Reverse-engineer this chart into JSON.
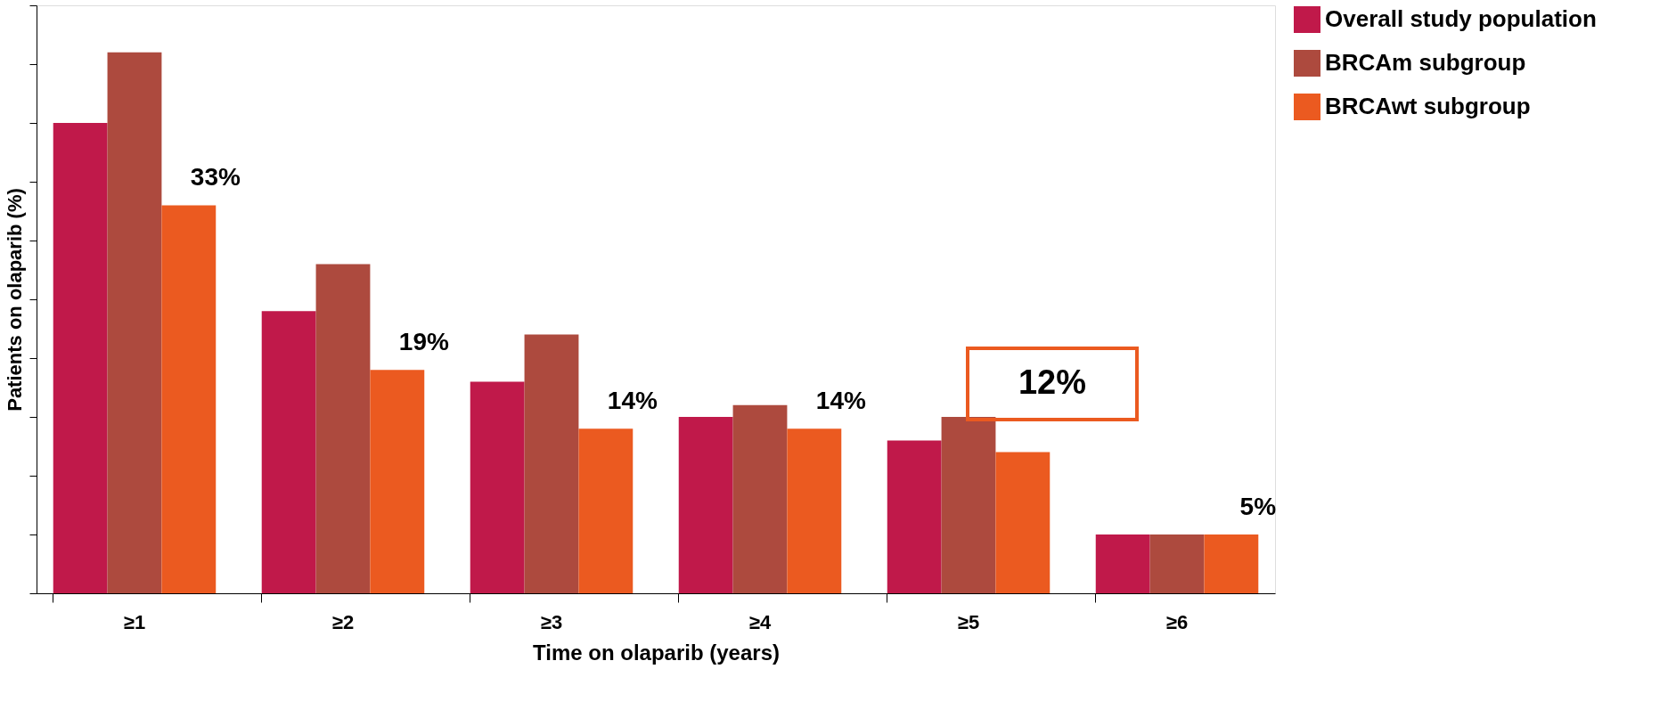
{
  "chart_data": {
    "type": "bar",
    "xlabel": "Time on olaparib (years)",
    "ylabel": "Patients on olaparib (%)",
    "categories": [
      "≥1",
      "≥2",
      "≥3",
      "≥4",
      "≥5",
      "≥6"
    ],
    "series": [
      {
        "name": "Overall study population",
        "color": "#c0194a",
        "values": [
          40,
          24,
          18,
          15,
          13,
          5
        ]
      },
      {
        "name": "BRCAm subgroup",
        "color": "#ad4a3e",
        "values": [
          46,
          28,
          22,
          16,
          15,
          5
        ]
      },
      {
        "name": "BRCAwt subgroup",
        "color": "#eb5a20",
        "values": [
          33,
          19,
          14,
          14,
          12,
          5
        ],
        "value_labels": [
          "33%",
          "19%",
          "14%",
          "14%",
          null,
          "5%"
        ]
      }
    ],
    "annotations": [
      "12%"
    ],
    "ylim": [
      0,
      50
    ],
    "yticks": [
      {
        "value": 0,
        "label": null
      },
      {
        "value": 5,
        "label": null
      },
      {
        "value": 10,
        "label": null
      },
      {
        "value": 15,
        "label": null
      },
      {
        "value": 20,
        "label": null
      },
      {
        "value": 25,
        "label": null
      },
      {
        "value": 30,
        "label": null
      },
      {
        "value": 35,
        "label": null
      },
      {
        "value": 40,
        "label": null
      },
      {
        "value": 45,
        "label": null
      },
      {
        "value": 50,
        "label": null
      }
    ],
    "tick_labels": "x",
    "grid": false,
    "legend": "top right"
  }
}
